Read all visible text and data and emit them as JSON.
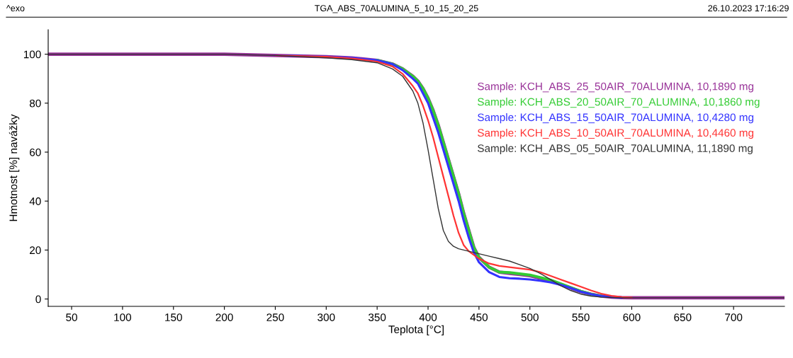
{
  "chart_data": {
    "type": "line",
    "title": "TGA_ABS_70ALUMINA_5_10_15_20_25",
    "xlabel": "Teplota [°C]",
    "ylabel": "Hmotnost [%] navážky",
    "annotations": [
      "^exo",
      "26.10.2023 17:16:29"
    ],
    "x": [
      27,
      50,
      100,
      150,
      200,
      250,
      300,
      325,
      350,
      365,
      375,
      385,
      390,
      395,
      400,
      405,
      410,
      415,
      420,
      425,
      430,
      435,
      440,
      445,
      450,
      460,
      470,
      480,
      490,
      500,
      510,
      520,
      530,
      540,
      550,
      560,
      570,
      580,
      590,
      600,
      650,
      700,
      750
    ],
    "series": [
      {
        "name": "Sample: KCH_ABS_25_50AIR_70ALUMINA, 10,1890 mg",
        "color": "#993399",
        "values": [
          100,
          100,
          100,
          100,
          100,
          99.5,
          99,
          98.5,
          97.5,
          96,
          94,
          91,
          89,
          86,
          82,
          77,
          71,
          64,
          57,
          50,
          43,
          35,
          28,
          21,
          17,
          13,
          11,
          10.5,
          10,
          9.5,
          8.5,
          7.5,
          6,
          4.5,
          3,
          2,
          1.2,
          0.8,
          0.6,
          0.5,
          0.5,
          0.5,
          0.5
        ]
      },
      {
        "name": "Sample: KCH_ABS_20_50AIR_70_ALUMINA, 10,1860 mg",
        "color": "#33cc33",
        "values": [
          null,
          null,
          null,
          null,
          null,
          null,
          null,
          null,
          97.5,
          96,
          94,
          91,
          89,
          86,
          82,
          77,
          71,
          64,
          57,
          50,
          43,
          35,
          28,
          21,
          17,
          13,
          11,
          10.8,
          10.3,
          9.8,
          8.8,
          7.8,
          6.3,
          4.7,
          3.2,
          2,
          1.2,
          null,
          null,
          null,
          null,
          null,
          null
        ]
      },
      {
        "name": "Sample: KCH_ABS_15_50AIR_70ALUMINA, 10,4280 mg",
        "color": "#3333ff",
        "values": [
          null,
          null,
          null,
          null,
          null,
          99.5,
          99,
          98.5,
          97.5,
          96,
          93.5,
          90,
          88,
          84,
          80,
          74,
          68,
          61,
          54,
          47,
          40,
          32,
          25,
          19,
          15,
          11,
          9,
          8.5,
          8.3,
          8,
          7.5,
          6.8,
          5.8,
          4.5,
          3,
          2,
          1.2,
          0.8,
          0.6,
          null,
          null,
          null,
          null
        ]
      },
      {
        "name": "Sample: KCH_ABS_10_50AIR_70ALUMINA, 10,4460 mg",
        "color": "#ff3333",
        "values": [
          null,
          null,
          null,
          null,
          null,
          99.5,
          99,
          98.3,
          97,
          95,
          92,
          87,
          84,
          79,
          73,
          66,
          58,
          50,
          42,
          34,
          27,
          22,
          19.5,
          18,
          16.5,
          14.5,
          13.5,
          13,
          12.5,
          12,
          11,
          9.5,
          8,
          6.5,
          5,
          3.5,
          2.2,
          1.3,
          0.8,
          0.6,
          null,
          null,
          null
        ]
      },
      {
        "name": "Sample: KCH_ABS_05_50AIR_70ALUMINA, 11,1890 mg",
        "color": "#333333",
        "values": [
          100,
          100,
          100,
          100,
          100,
          99.5,
          98.5,
          97.8,
          96.5,
          94,
          91,
          85,
          80,
          72,
          61,
          49,
          37,
          28,
          23.5,
          21.5,
          20.5,
          20,
          19.5,
          19,
          18.5,
          17.5,
          16.5,
          15.5,
          14,
          12.5,
          10.5,
          8,
          5.5,
          3.5,
          2,
          1.2,
          0.8,
          0.6,
          0.5,
          0.5,
          0.5,
          0.5,
          0.5
        ]
      }
    ],
    "xlim": [
      27,
      750
    ],
    "xticks": [
      50,
      100,
      150,
      200,
      250,
      300,
      350,
      400,
      450,
      500,
      550,
      600,
      650,
      700
    ],
    "ylim": [
      -3,
      110
    ],
    "yticks": [
      0,
      20,
      40,
      60,
      80,
      100
    ],
    "grid": false,
    "legend": "right",
    "marker": "none",
    "line_style": "solid"
  }
}
